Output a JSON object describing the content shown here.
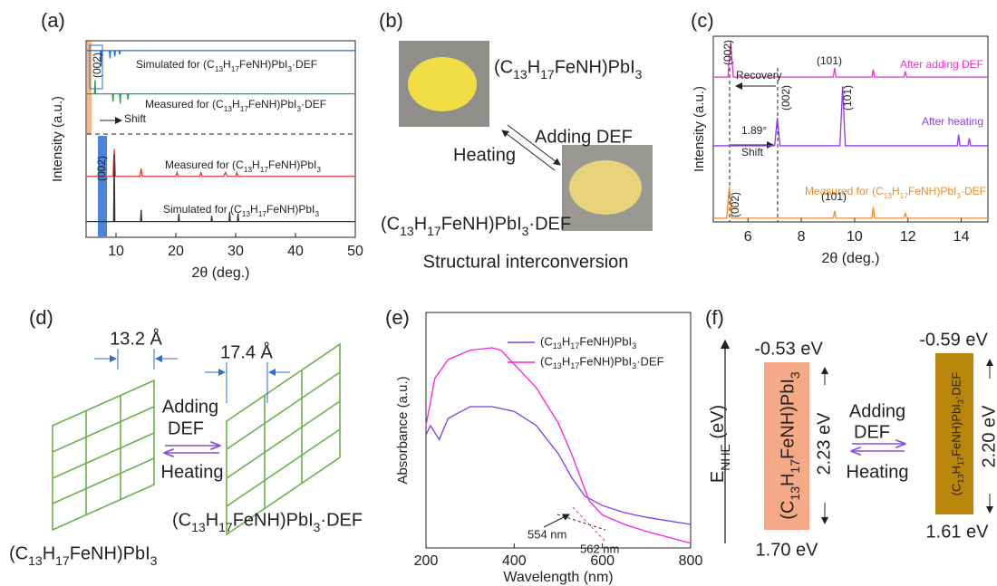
{
  "panel_labels": [
    "(a)",
    "(b)",
    "(c)",
    "(d)",
    "(e)",
    "(f)"
  ],
  "chart_data": [
    {
      "type": "line",
      "x_label": "2θ (deg.)",
      "y_label": "Intensity (a.u.)",
      "xlim": [
        5,
        50
      ],
      "xticks": [
        10,
        20,
        30,
        40,
        50
      ],
      "ylim": [
        0,
        100
      ],
      "annotations": [
        "(002)",
        "(002)",
        "Shift"
      ],
      "series": [
        {
          "name": "Simulated for (C13H17FeNH)PbI3·DEF",
          "color": "#1f6fd1",
          "x": [
            5,
            7.4,
            7.5,
            7.6,
            8.9,
            9,
            9.1,
            9.7,
            9.8,
            9.9,
            10.5,
            10.6,
            10.7,
            50
          ],
          "values": [
            95,
            95,
            87,
            95,
            95,
            91,
            95,
            95,
            92,
            95,
            95,
            93,
            95,
            95
          ]
        },
        {
          "name": "Measured for (C13H17FeNH)PbI3·DEF",
          "color": "#2ca05a",
          "x": [
            5,
            6.4,
            6.5,
            6.6,
            9.4,
            9.5,
            9.6,
            10.6,
            10.7,
            10.8,
            11.9,
            12,
            12.1,
            50
          ],
          "values": [
            73,
            73,
            80,
            73,
            73,
            69,
            73,
            73,
            68,
            73,
            73,
            70,
            73,
            73
          ]
        },
        {
          "name": "Measured for (C13H17FeNH)PbI3",
          "color": "#e8393a",
          "x": [
            5,
            9.5,
            9.7,
            9.9,
            14,
            14.2,
            14.4,
            20,
            20.2,
            20.4,
            24,
            24.2,
            24.4,
            28,
            28.3,
            28.6,
            30,
            30.2,
            30.4,
            50
          ],
          "values": [
            31,
            31,
            45,
            31,
            31,
            35,
            31,
            31,
            33,
            31,
            31,
            33,
            31,
            31,
            33,
            31,
            31,
            33,
            31,
            31
          ]
        },
        {
          "name": "Simulated for (C13H17FeNH)PbI3",
          "color": "#333333",
          "x": [
            5,
            9.6,
            9.7,
            9.8,
            14.1,
            14.2,
            14.3,
            20.4,
            20.5,
            20.6,
            25.9,
            26,
            26.1,
            28.9,
            29,
            29.1,
            30.3,
            30.4,
            30.5,
            50
          ],
          "values": [
            8,
            8,
            42,
            8,
            8,
            14,
            8,
            8,
            12,
            8,
            8,
            11,
            8,
            8,
            13,
            8,
            8,
            12,
            8,
            8
          ]
        }
      ]
    },
    {
      "type": "line",
      "x_label": "2θ (deg.)",
      "y_label": "Intensity (a.u.)",
      "xlim": [
        4.7,
        15
      ],
      "xticks": [
        6,
        8,
        10,
        12,
        14
      ],
      "ylim": [
        0,
        100
      ],
      "annotations": [
        "(002)",
        "Recovery",
        "(101)",
        "1.89°",
        "Shift",
        "(002)",
        "(101)",
        "(002)",
        "(101)"
      ],
      "series": [
        {
          "name": "After adding DEF",
          "color": "#f02cd2",
          "x": [
            4.7,
            5.25,
            5.35,
            5.45,
            9.2,
            9.25,
            9.3,
            10.65,
            10.7,
            10.75,
            11.85,
            11.9,
            11.95,
            15
          ],
          "values": [
            78,
            78,
            97,
            78,
            78,
            83,
            78,
            78,
            82,
            78,
            78,
            81,
            78,
            78
          ]
        },
        {
          "name": "After heating",
          "color": "#8a3cf0",
          "x": [
            4.7,
            7.0,
            7.1,
            7.2,
            9.45,
            9.55,
            9.65,
            13.85,
            13.9,
            13.95,
            14.25,
            14.3,
            14.35,
            15
          ],
          "values": [
            41,
            41,
            56,
            41,
            41,
            73,
            41,
            41,
            47,
            41,
            41,
            45,
            41,
            41
          ]
        },
        {
          "name": "Measured for (C13H17FeNH)PbI3·DEF",
          "color": "#f5891f",
          "x": [
            4.7,
            5.2,
            5.3,
            5.4,
            9.2,
            9.25,
            9.3,
            10.65,
            10.7,
            10.75,
            11.85,
            11.9,
            11.95,
            15
          ],
          "values": [
            2,
            2,
            19,
            2,
            2,
            6,
            2,
            2,
            8,
            2,
            2,
            5,
            2,
            2
          ]
        }
      ]
    },
    {
      "type": "line",
      "x_label": "Wavelength (nm)",
      "y_label": "Absorbance (a.u.)",
      "xlim": [
        200,
        800
      ],
      "xticks": [
        200,
        400,
        600,
        800
      ],
      "ylim": [
        0,
        100
      ],
      "annotations": [
        "554 nm",
        "562 nm"
      ],
      "series": [
        {
          "name": "(C13H17FeNH)PbI3",
          "color": "#7a3cf0",
          "x": [
            200,
            210,
            230,
            250,
            300,
            350,
            400,
            450,
            500,
            530,
            560,
            600,
            650,
            700,
            800
          ],
          "values": [
            48,
            52,
            46,
            55,
            60,
            60,
            58,
            52,
            40,
            30,
            22,
            18,
            15,
            13,
            10
          ]
        },
        {
          "name": "(C13H17FeNH)PbI3·DEF",
          "color": "#ff1fd6",
          "x": [
            200,
            220,
            250,
            300,
            350,
            370,
            400,
            450,
            500,
            530,
            550,
            570,
            600,
            650,
            700,
            800
          ],
          "values": [
            52,
            72,
            80,
            84,
            85,
            84,
            78,
            68,
            53,
            40,
            30,
            20,
            14,
            10,
            7,
            2
          ]
        }
      ]
    }
  ],
  "panel_b": {
    "formula_top": "(C13H17FeNH)PbI3",
    "forward": "Adding DEF",
    "reverse": "Heating",
    "formula_bottom": "(C13H17FeNH)PbI3·DEF",
    "caption": "Structural interconversion"
  },
  "panel_d": {
    "spacing_left": "13.2 Å",
    "spacing_right": "17.4 Å",
    "forward": [
      "Adding",
      "DEF"
    ],
    "reverse": "Heating",
    "label_left": "(C13H17FeNH)PbI3",
    "label_right": "(C13H17FeNH)PbI3·DEF"
  },
  "panel_f": {
    "axis_label": [
      "E",
      "NHE",
      " (eV)"
    ],
    "left": {
      "top": "-0.53 eV",
      "gap": "2.23 eV",
      "bottom": "1.70 eV",
      "name": "(C13H17FeNH)PbI3"
    },
    "forward": [
      "Adding",
      "DEF"
    ],
    "reverse": "Heating",
    "right": {
      "top": "-0.59 eV",
      "gap": "2.20 eV",
      "bottom": "1.61 eV",
      "name": "(C13H17FeNH)PbI3·DEF"
    }
  }
}
